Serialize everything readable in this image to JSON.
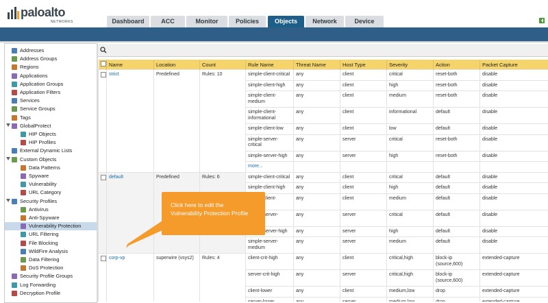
{
  "header": {
    "logo": "paloalto",
    "logo_sub": "NETWORKS",
    "tabs": [
      {
        "label": "Dashboard"
      },
      {
        "label": "ACC"
      },
      {
        "label": "Monitor"
      },
      {
        "label": "Policies"
      },
      {
        "label": "Objects",
        "active": true
      },
      {
        "label": "Network"
      },
      {
        "label": "Device"
      }
    ]
  },
  "sidebar": {
    "items": [
      {
        "label": "Addresses"
      },
      {
        "label": "Address Groups"
      },
      {
        "label": "Regions"
      },
      {
        "label": "Applications"
      },
      {
        "label": "Application Groups"
      },
      {
        "label": "Application Filters"
      },
      {
        "label": "Services"
      },
      {
        "label": "Service Groups"
      },
      {
        "label": "Tags"
      },
      {
        "label": "GlobalProtect",
        "children": [
          {
            "label": "HIP Objects"
          },
          {
            "label": "HIP Profiles"
          }
        ]
      },
      {
        "label": "External Dynamic Lists"
      },
      {
        "label": "Custom Objects",
        "children": [
          {
            "label": "Data Patterns"
          },
          {
            "label": "Spyware"
          },
          {
            "label": "Vulnerability"
          },
          {
            "label": "URL Category"
          }
        ]
      },
      {
        "label": "Security Profiles",
        "children": [
          {
            "label": "Antivirus"
          },
          {
            "label": "Anti-Spyware"
          },
          {
            "label": "Vulnerability Protection",
            "selected": true
          },
          {
            "label": "URL Filtering"
          },
          {
            "label": "File Blocking"
          },
          {
            "label": "WildFire Analysis"
          },
          {
            "label": "Data Filtering"
          },
          {
            "label": "DoS Protection"
          }
        ]
      },
      {
        "label": "Security Profile Groups"
      },
      {
        "label": "Log Forwarding"
      },
      {
        "label": "Decryption Profile"
      }
    ]
  },
  "table": {
    "columns": [
      "Name",
      "Location",
      "Count",
      "Rule Name",
      "Threat Name",
      "Host Type",
      "Severity",
      "Action",
      "Packet Capture"
    ],
    "profiles": [
      {
        "name": "strict",
        "location": "Predefined",
        "count": "Rules: 10",
        "rules": [
          [
            "simple-client-critical",
            "any",
            "client",
            "critical",
            "reset-both",
            "disable"
          ],
          [
            "simple-client-high",
            "any",
            "client",
            "high",
            "reset-both",
            "disable"
          ],
          [
            "simple-client-medium",
            "any",
            "client",
            "medium",
            "reset-both",
            "disable"
          ],
          [
            "simple-client-informational",
            "any",
            "client",
            "informational",
            "default",
            "disable"
          ],
          [
            "simple-client-low",
            "any",
            "client",
            "low",
            "default",
            "disable"
          ],
          [
            "simple-server-critical",
            "any",
            "server",
            "critical",
            "reset-both",
            "disable"
          ],
          [
            "simple-server-high",
            "any",
            "server",
            "high",
            "reset-both",
            "disable"
          ]
        ],
        "more": "more..."
      },
      {
        "name": "default",
        "location": "Predefined",
        "count": "Rules: 6",
        "rules": [
          [
            "simple-client-critical",
            "any",
            "client",
            "critical",
            "default",
            "disable"
          ],
          [
            "simple-client-high",
            "any",
            "client",
            "high",
            "default",
            "disable"
          ],
          [
            "simple-client-medium",
            "any",
            "client",
            "medium",
            "default",
            "disable"
          ],
          [
            "simple-server-critical",
            "any",
            "server",
            "critical",
            "default",
            "disable"
          ],
          [
            "simple-server-high",
            "any",
            "server",
            "high",
            "default",
            "disable"
          ],
          [
            "simple-server-medium",
            "any",
            "server",
            "medium",
            "default",
            "disable"
          ]
        ]
      },
      {
        "name": "corp-vp",
        "location": "superwire (vsys2)",
        "count": "Rules: 4",
        "rules": [
          [
            "client-crit-high",
            "any",
            "client",
            "critical,high",
            "block-ip (source,600)",
            "extended-capture"
          ],
          [
            "server-crit-high",
            "any",
            "server",
            "critical,high",
            "block-ip (source,600)",
            "extended-capture"
          ],
          [
            "client-lower",
            "any",
            "client",
            "medium,low",
            "drop",
            "extended-capture"
          ],
          [
            "server-lower",
            "any",
            "server",
            "medium,low",
            "drop",
            "extended-capture"
          ]
        ]
      }
    ]
  },
  "callout": {
    "lines": [
      "Click here to edit the",
      "Vulnerability Protection Profile"
    ]
  }
}
